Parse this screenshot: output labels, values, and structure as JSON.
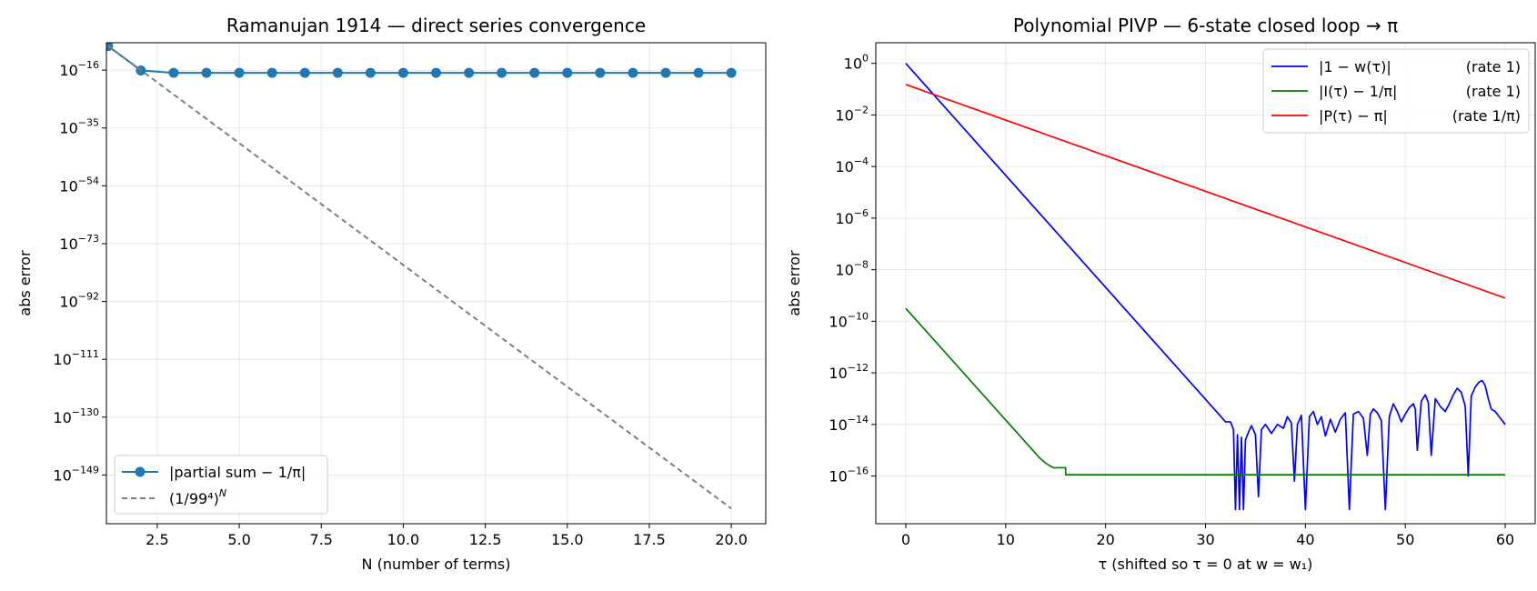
{
  "chart_data": [
    {
      "type": "line",
      "title": "Ramanujan 1914 — direct series convergence",
      "xlabel": "N (number of terms)",
      "ylabel": "abs error",
      "yscale": "log",
      "xlim": [
        0.95,
        21.05
      ],
      "ylim_exp": [
        -165,
        -7
      ],
      "grid": true,
      "legend_position": "lower-left",
      "xticks": [
        2.5,
        5.0,
        7.5,
        10.0,
        12.5,
        15.0,
        17.5,
        20.0
      ],
      "xtick_labels": [
        "2.5",
        "5.0",
        "7.5",
        "10.0",
        "12.5",
        "15.0",
        "17.5",
        "20.0"
      ],
      "ytick_exps": [
        -16,
        -35,
        -54,
        -73,
        -92,
        -111,
        -130,
        -149
      ],
      "ytick_labels": [
        "-16",
        "-35",
        "-54",
        "-73",
        "-92",
        "-111",
        "-130",
        "-149"
      ],
      "series": [
        {
          "name": "|partial sum − 1/π|",
          "color": "#1f77b4",
          "style": "solid-markers",
          "x": [
            1,
            2,
            3,
            4,
            5,
            6,
            7,
            8,
            9,
            10,
            11,
            12,
            13,
            14,
            15,
            16,
            17,
            18,
            19,
            20
          ],
          "log10_y": [
            -8.1,
            -16.1,
            -16.9,
            -16.9,
            -16.9,
            -16.9,
            -16.9,
            -16.9,
            -16.9,
            -16.9,
            -16.9,
            -16.9,
            -16.9,
            -16.9,
            -16.9,
            -16.9,
            -16.9,
            -16.9,
            -16.9,
            -16.9
          ]
        },
        {
          "name": "(1/99⁴)",
          "name_superscript": "N",
          "color": "#7f7f7f",
          "style": "dashed",
          "x": [
            1,
            2,
            3,
            4,
            5,
            6,
            7,
            8,
            9,
            10,
            11,
            12,
            13,
            14,
            15,
            16,
            17,
            18,
            19,
            20
          ],
          "log10_y": [
            -8,
            -16,
            -24,
            -32,
            -40,
            -48,
            -56,
            -64,
            -72,
            -80,
            -88,
            -96,
            -104,
            -112,
            -120,
            -128,
            -136,
            -144,
            -152,
            -160
          ]
        }
      ]
    },
    {
      "type": "line",
      "title": "Polynomial PIVP — 6-state closed loop → π",
      "xlabel": "τ  (shifted so τ = 0 at w = w₁)",
      "ylabel": "abs error",
      "yscale": "log",
      "xlim": [
        -3,
        63
      ],
      "ylim_exp": [
        -17.85,
        0.8
      ],
      "grid": true,
      "legend_position": "upper-right",
      "xticks": [
        0,
        10,
        20,
        30,
        40,
        50,
        60
      ],
      "xtick_labels": [
        "0",
        "10",
        "20",
        "30",
        "40",
        "50",
        "60"
      ],
      "ytick_exps": [
        0,
        -2,
        -4,
        -6,
        -8,
        -10,
        -12,
        -14,
        -16
      ],
      "ytick_labels": [
        "0",
        "-2",
        "-4",
        "-6",
        "-8",
        "-10",
        "-12",
        "-14",
        "-16"
      ],
      "series": [
        {
          "name": "|1 − w(τ)|",
          "rate": "(rate 1)",
          "color": "#0000ff",
          "x": [
            0,
            31,
            32,
            32.5,
            32.8,
            33.0,
            33.2,
            33.4,
            33.6,
            33.8,
            34.0,
            34.3,
            34.6,
            35.0,
            35.3,
            35.6,
            36.0,
            36.6,
            37.2,
            37.8,
            38.2,
            38.6,
            38.9,
            39.2,
            39.6,
            40.0,
            40.4,
            40.8,
            41.2,
            41.6,
            42.0,
            42.5,
            43.0,
            43.5,
            44.0,
            44.4,
            44.8,
            45.3,
            45.8,
            46.2,
            46.5,
            46.8,
            47.2,
            47.6,
            48.0,
            48.4,
            48.8,
            49.2,
            49.6,
            50.0,
            50.4,
            50.8,
            51.0,
            51.2,
            51.6,
            52.0,
            52.3,
            52.6,
            53.0,
            53.5,
            54.0,
            54.4,
            54.8,
            55.2,
            55.6,
            56.0,
            56.3,
            56.6,
            57.0,
            57.4,
            57.7,
            58.0,
            58.3,
            58.6,
            59.0,
            59.5,
            60.0
          ],
          "log10_y": [
            0,
            -13.46,
            -13.9,
            -13.9,
            -14.2,
            -17.3,
            -14.4,
            -17.3,
            -14.5,
            -17.3,
            -14.6,
            -14.3,
            -14.05,
            -14.4,
            -16.8,
            -14.2,
            -14.0,
            -14.35,
            -14.0,
            -14.15,
            -13.7,
            -13.95,
            -16.2,
            -14.0,
            -13.65,
            -17.3,
            -13.7,
            -13.5,
            -14.0,
            -13.7,
            -14.45,
            -13.8,
            -14.3,
            -13.8,
            -13.55,
            -17.3,
            -13.6,
            -13.5,
            -13.75,
            -15.2,
            -13.6,
            -13.4,
            -13.55,
            -13.85,
            -17.3,
            -13.7,
            -13.2,
            -13.5,
            -13.9,
            -13.6,
            -13.35,
            -13.2,
            -13.4,
            -15.0,
            -13.1,
            -12.85,
            -13.15,
            -15.2,
            -13.0,
            -13.3,
            -13.5,
            -13.2,
            -12.85,
            -12.6,
            -12.75,
            -13.3,
            -16.0,
            -12.9,
            -12.55,
            -12.35,
            -12.3,
            -12.5,
            -13.0,
            -13.4,
            -13.5,
            -13.75,
            -14.0
          ]
        },
        {
          "name": "|I(τ) − 1/π|",
          "rate": "(rate 1)",
          "color": "#008000",
          "x": [
            0,
            13.4,
            14.0,
            14.4,
            14.8,
            15.2,
            15.6,
            16.0,
            16.0,
            60
          ],
          "log10_y": [
            -9.5,
            -15.3,
            -15.5,
            -15.6,
            -15.68,
            -15.68,
            -15.68,
            -15.68,
            -15.95,
            -15.95
          ]
        },
        {
          "name": "|P(τ) − π|",
          "rate": "(rate 1/π)",
          "color": "#ff0000",
          "x": [
            0,
            60
          ],
          "log10_y": [
            -0.82,
            -9.1
          ]
        }
      ]
    }
  ]
}
